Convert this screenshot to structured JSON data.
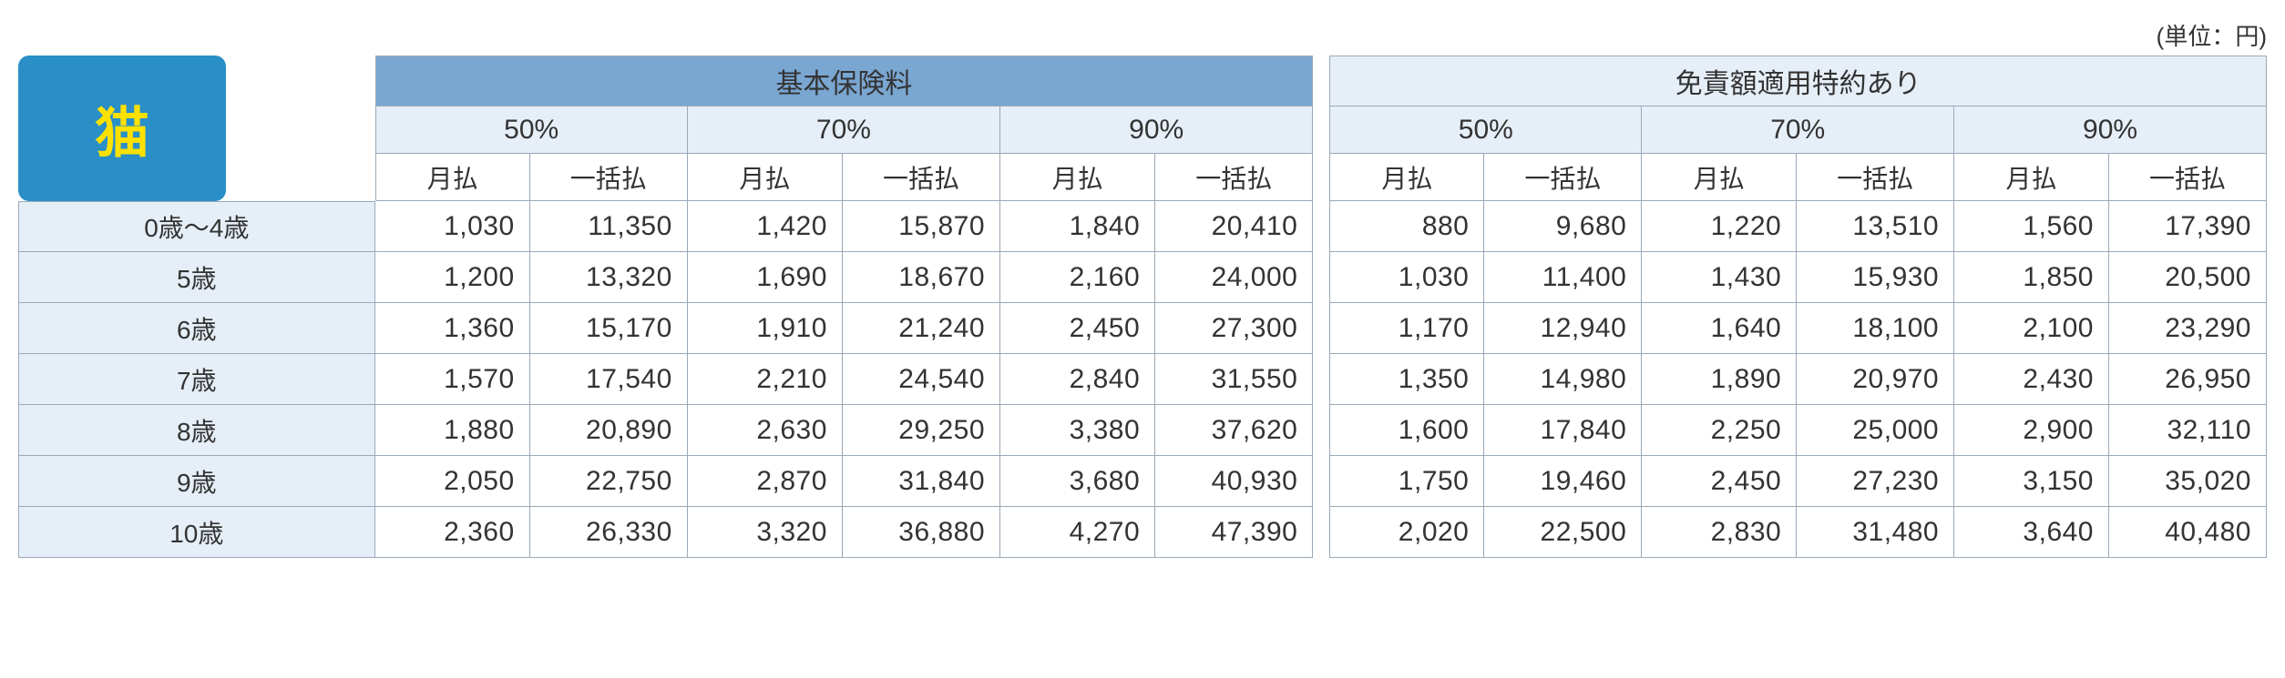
{
  "unit_label": "(単位：円)",
  "corner_label": "猫",
  "colors": {
    "header_main_bg": "#7aa6d2",
    "header_sub_bg": "#e6eef7",
    "age_bg": "#e6eef7",
    "border": "#9aa9b8",
    "badge_bg": "#2a8fc7",
    "badge_fg": "#ffe100"
  },
  "left": {
    "title": "基本保険料",
    "percent_labels": [
      "50%",
      "70%",
      "90%"
    ],
    "pay_labels": [
      "月払",
      "一括払"
    ]
  },
  "right": {
    "title": "免責額適用特約あり",
    "percent_labels": [
      "50%",
      "70%",
      "90%"
    ],
    "pay_labels": [
      "月払",
      "一括払"
    ]
  },
  "ages": [
    "0歳〜4歳",
    "5歳",
    "6歳",
    "7歳",
    "8歳",
    "9歳",
    "10歳"
  ],
  "rows": [
    {
      "left": [
        "1,030",
        "11,350",
        "1,420",
        "15,870",
        "1,840",
        "20,410"
      ],
      "right": [
        "880",
        "9,680",
        "1,220",
        "13,510",
        "1,560",
        "17,390"
      ]
    },
    {
      "left": [
        "1,200",
        "13,320",
        "1,690",
        "18,670",
        "2,160",
        "24,000"
      ],
      "right": [
        "1,030",
        "11,400",
        "1,430",
        "15,930",
        "1,850",
        "20,500"
      ]
    },
    {
      "left": [
        "1,360",
        "15,170",
        "1,910",
        "21,240",
        "2,450",
        "27,300"
      ],
      "right": [
        "1,170",
        "12,940",
        "1,640",
        "18,100",
        "2,100",
        "23,290"
      ]
    },
    {
      "left": [
        "1,570",
        "17,540",
        "2,210",
        "24,540",
        "2,840",
        "31,550"
      ],
      "right": [
        "1,350",
        "14,980",
        "1,890",
        "20,970",
        "2,430",
        "26,950"
      ]
    },
    {
      "left": [
        "1,880",
        "20,890",
        "2,630",
        "29,250",
        "3,380",
        "37,620"
      ],
      "right": [
        "1,600",
        "17,840",
        "2,250",
        "25,000",
        "2,900",
        "32,110"
      ]
    },
    {
      "left": [
        "2,050",
        "22,750",
        "2,870",
        "31,840",
        "3,680",
        "40,930"
      ],
      "right": [
        "1,750",
        "19,460",
        "2,450",
        "27,230",
        "3,150",
        "35,020"
      ]
    },
    {
      "left": [
        "2,360",
        "26,330",
        "3,320",
        "36,880",
        "4,270",
        "47,390"
      ],
      "right": [
        "2,020",
        "22,500",
        "2,830",
        "31,480",
        "3,640",
        "40,480"
      ]
    }
  ]
}
